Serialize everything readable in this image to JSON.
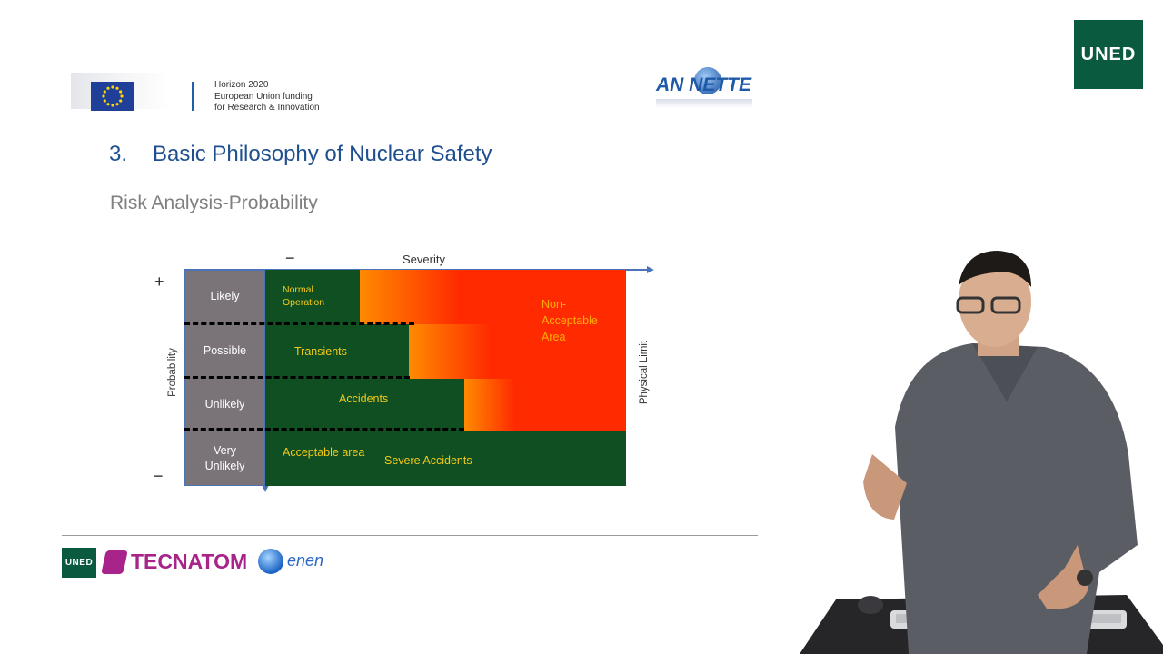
{
  "header": {
    "funding_lines": [
      "Horizon 2020",
      "European Union funding",
      "for Research & Innovation"
    ],
    "annette_logo": "AN NETTE",
    "uned_logo": "UNED"
  },
  "slide": {
    "number": "3.",
    "title": "Basic Philosophy of Nuclear Safety",
    "subtitle": "Risk Analysis-Probability"
  },
  "chart": {
    "plus": "+",
    "minus_top": "−",
    "minus_bottom": "−",
    "x_axis": "Severity",
    "y_axis": "Probability",
    "right_axis": "Physical Limit",
    "rows": [
      "Likely",
      "Possible",
      "Unlikely",
      "Very Unlikely"
    ],
    "rows_split": {
      "very_unlikely_1": "Very",
      "very_unlikely_2": "Unlikely"
    },
    "cells": {
      "normal_1": "Normal",
      "normal_2": "Operation",
      "transients": "Transients",
      "accidents": "Accidents",
      "acceptable": "Acceptable area",
      "severe": "Severe Accidents",
      "non_1": "Non-",
      "non_2": "Acceptable",
      "non_3": "Area"
    },
    "colors": {
      "acceptable": "#0f4f22",
      "non_acceptable": "#ff2a00",
      "probability_column": "#7a7478",
      "label_text": "#f3c91a"
    }
  },
  "footer": {
    "uned_small": "UNED",
    "tecnatom": "TECNATOM",
    "enen": "enen"
  }
}
